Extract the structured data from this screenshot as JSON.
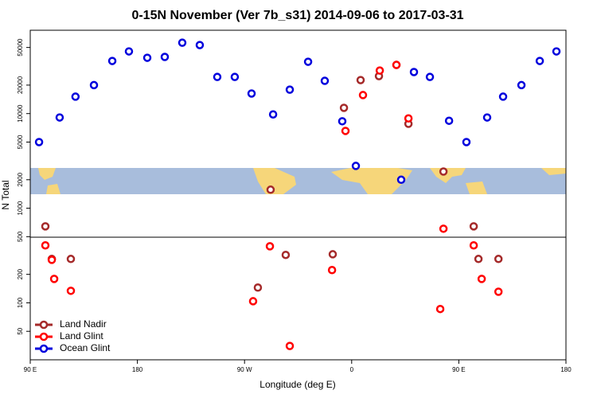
{
  "chart_data": {
    "type": "scatter",
    "title": "0-15N November (Ver 7b_s31)   2014-09-06 to 2017-03-31",
    "x_label": "Longitude (deg E)",
    "y_label": "N Total",
    "log_y": true,
    "legend_position": "lower left",
    "xlim": [
      90,
      540
    ],
    "xticks": [
      {
        "value": 90,
        "label": "90 E"
      },
      {
        "value": 180,
        "label": "180"
      },
      {
        "value": 270,
        "label": "90 W"
      },
      {
        "value": 360,
        "label": "0"
      },
      {
        "value": 450,
        "label": "90 E"
      },
      {
        "value": 540,
        "label": "180"
      }
    ],
    "ylim": [
      25,
      76000
    ],
    "yticks": [
      50,
      100,
      200,
      500,
      1000,
      2000,
      5000,
      10000,
      20000,
      50000
    ],
    "series": [
      {
        "name": "Land Nadir",
        "color": "#a52a2a",
        "x": [
          102.7,
          108.1,
          124.1,
          281.2,
          291.9,
          304.6,
          344.1,
          353.5,
          367.5,
          382.9,
          397.6,
          407.7,
          437.1,
          462.5,
          466.5,
          483.3
        ],
        "values": [
          643,
          291,
          291,
          145,
          1570,
          321,
          326,
          11500,
          22600,
          24900,
          32700,
          7800,
          2440,
          643,
          291,
          291
        ]
      },
      {
        "name": "Land Glint",
        "color": "#ff0000",
        "x": [
          102.7,
          108.1,
          110.1,
          124.1,
          277.2,
          291.3,
          308,
          343.5,
          354.8,
          369.5,
          383.6,
          397.6,
          407.7,
          434.4,
          437.1,
          462.5,
          469.2,
          483.3
        ],
        "values": [
          405,
          285,
          179,
          134,
          104,
          396,
          35,
          222,
          6560,
          15700,
          28500,
          32700,
          8900,
          86,
          607,
          405,
          179,
          131
        ]
      },
      {
        "name": "Ocean Glint",
        "color": "#0000dd",
        "x": [
          97.4,
          114.7,
          128,
          143.5,
          158.9,
          172.9,
          188.3,
          203,
          217.7,
          232.4,
          247.1,
          261.8,
          275.9,
          294,
          308,
          323.4,
          337.4,
          352.1,
          363.5,
          401.6,
          412.3,
          425.7,
          441.8,
          456.4,
          473.8,
          487.2,
          502.6,
          518,
          532
        ],
        "values": [
          5000,
          9100,
          15100,
          20000,
          36000,
          45400,
          38900,
          39700,
          56100,
          53000,
          24400,
          24400,
          16300,
          9800,
          17900,
          35300,
          22200,
          8300,
          2800,
          2000,
          27500,
          24400,
          8400,
          5000,
          9100,
          15100,
          20000,
          36000,
          45400
        ]
      }
    ]
  }
}
